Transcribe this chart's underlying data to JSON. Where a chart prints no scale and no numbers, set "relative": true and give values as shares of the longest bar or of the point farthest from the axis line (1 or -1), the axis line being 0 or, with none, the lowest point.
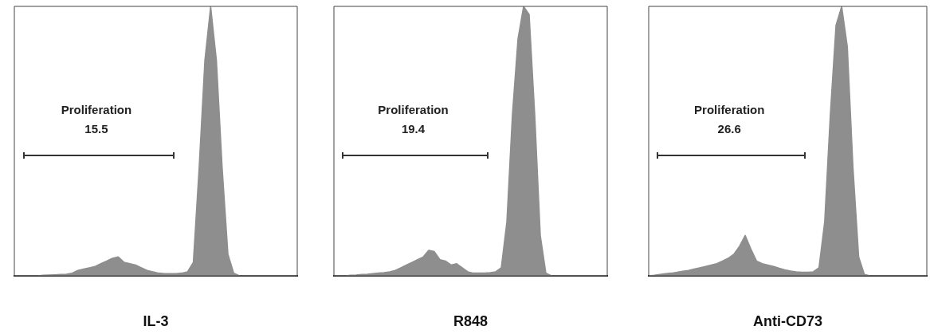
{
  "chart_data": [
    {
      "type": "area",
      "xlabel": "IL-3",
      "relative": true,
      "color": "#8e8e8e",
      "annotations": [
        "Proliferation",
        "15.5"
      ],
      "categories": [
        null,
        null,
        null,
        null,
        null,
        null,
        null,
        null,
        null,
        null,
        null,
        null,
        null,
        null,
        null,
        null,
        null,
        null,
        null,
        null,
        null,
        null,
        null,
        null,
        null,
        null,
        null,
        null,
        null,
        null,
        null,
        null,
        null,
        null,
        null,
        null,
        null,
        null,
        null,
        null,
        null,
        null,
        null,
        null,
        null,
        null,
        null,
        null,
        null,
        null
      ],
      "values": [
        0,
        0,
        0,
        0,
        0,
        0.002,
        0.003,
        0.004,
        0.005,
        0.006,
        0.01,
        0.02,
        0.025,
        0.03,
        0.035,
        0.045,
        0.055,
        0.065,
        0.07,
        0.05,
        0.045,
        0.04,
        0.03,
        0.02,
        0.015,
        0.01,
        0.008,
        0.008,
        0.008,
        0.01,
        0.015,
        0.05,
        0.4,
        0.8,
        1,
        0.8,
        0.4,
        0.08,
        0.01,
        0,
        0,
        0,
        0,
        0,
        0,
        0,
        0,
        0,
        0,
        0
      ]
    },
    {
      "type": "area",
      "xlabel": "R848",
      "relative": true,
      "color": "#8e8e8e",
      "annotations": [
        "Proliferation",
        "19.4"
      ],
      "categories": [
        null,
        null,
        null,
        null,
        null,
        null,
        null,
        null,
        null,
        null,
        null,
        null,
        null,
        null,
        null,
        null,
        null,
        null,
        null,
        null,
        null,
        null,
        null,
        null,
        null,
        null,
        null,
        null,
        null,
        null,
        null,
        null,
        null,
        null,
        null,
        null,
        null,
        null,
        null,
        null,
        null,
        null,
        null,
        null,
        null,
        null,
        null,
        null,
        null,
        null
      ],
      "values": [
        0,
        0,
        0,
        0.002,
        0.003,
        0.005,
        0.006,
        0.008,
        0.01,
        0.012,
        0.015,
        0.02,
        0.03,
        0.04,
        0.05,
        0.06,
        0.07,
        0.095,
        0.09,
        0.06,
        0.055,
        0.04,
        0.045,
        0.03,
        0.015,
        0.01,
        0.01,
        0.01,
        0.012,
        0.015,
        0.03,
        0.2,
        0.6,
        0.88,
        1,
        0.97,
        0.6,
        0.15,
        0.01,
        0,
        0,
        0,
        0,
        0,
        0,
        0,
        0,
        0,
        0,
        0
      ]
    },
    {
      "type": "area",
      "xlabel": "Anti-CD73",
      "relative": true,
      "color": "#8e8e8e",
      "annotations": [
        "Proliferation",
        "26.6"
      ],
      "categories": [
        null,
        null,
        null,
        null,
        null,
        null,
        null,
        null,
        null,
        null,
        null,
        null,
        null,
        null,
        null,
        null,
        null,
        null,
        null,
        null,
        null,
        null,
        null,
        null,
        null,
        null,
        null,
        null,
        null,
        null,
        null,
        null,
        null,
        null,
        null,
        null,
        null,
        null,
        null,
        null,
        null,
        null,
        null,
        null,
        null,
        null,
        null,
        null,
        null,
        null
      ],
      "values": [
        0,
        0.002,
        0.005,
        0.008,
        0.01,
        0.013,
        0.017,
        0.02,
        0.025,
        0.03,
        0.035,
        0.04,
        0.045,
        0.055,
        0.065,
        0.08,
        0.11,
        0.15,
        0.1,
        0.055,
        0.045,
        0.04,
        0.035,
        0.028,
        0.022,
        0.018,
        0.015,
        0.013,
        0.013,
        0.015,
        0.03,
        0.2,
        0.6,
        0.93,
        1,
        0.85,
        0.4,
        0.07,
        0.005,
        0,
        0,
        0,
        0,
        0,
        0,
        0,
        0,
        0,
        0,
        0
      ]
    }
  ]
}
